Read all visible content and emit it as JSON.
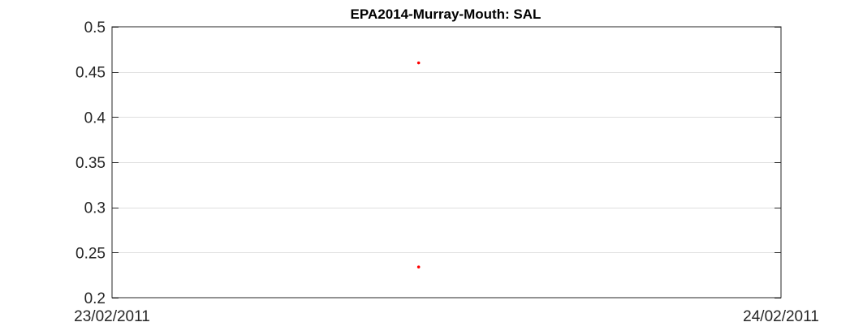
{
  "chart_data": {
    "type": "scatter",
    "title": "EPA2014-Murray-Mouth: SAL",
    "xlabel": "",
    "ylabel": "",
    "x_range": [
      "23/02/2011",
      "24/02/2011"
    ],
    "x_tick_labels": [
      "23/02/2011",
      "24/02/2011"
    ],
    "ylim": [
      0.2,
      0.5
    ],
    "y_ticks": [
      0.2,
      0.25,
      0.3,
      0.35,
      0.4,
      0.45,
      0.5
    ],
    "y_tick_labels": [
      "0.2",
      "0.25",
      "0.3",
      "0.35",
      "0.4",
      "0.45",
      "0.5"
    ],
    "grid": "horizontal",
    "series": [
      {
        "color": "#ff0000",
        "points": [
          {
            "x": "23/02/2011 11:00",
            "y": 0.46
          },
          {
            "x": "23/02/2011 11:00",
            "y": 0.234
          }
        ]
      }
    ]
  }
}
